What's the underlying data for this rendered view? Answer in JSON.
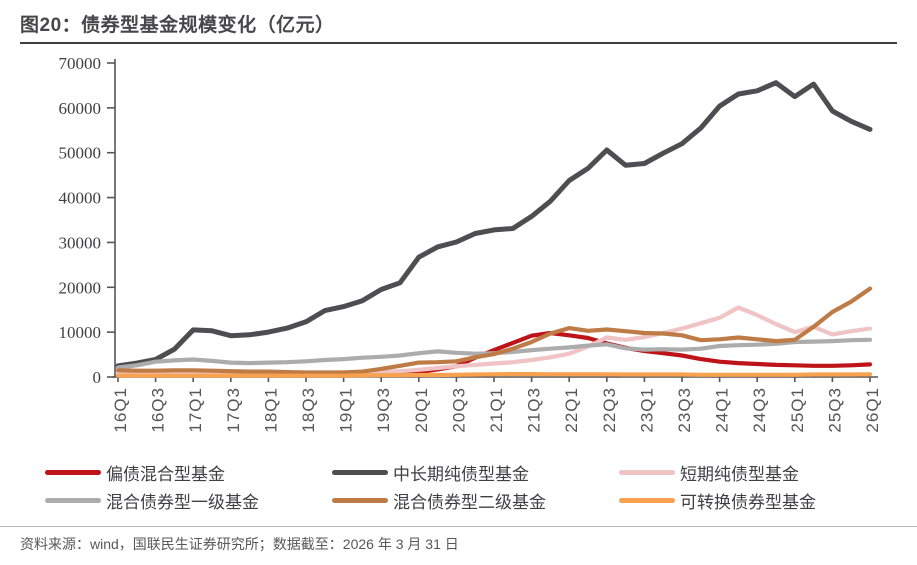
{
  "header": {
    "title": "图20：债券型基金规模变化（亿元）"
  },
  "footer": {
    "source": "资料来源：wind，国联民生证券研究所；数据截至：2026 年 3 月 31 日"
  },
  "chart_data": {
    "type": "line",
    "title": "图20：债券型基金规模变化（亿元）",
    "unit": "亿元",
    "xlabel": "",
    "ylabel": "",
    "ylim": [
      0,
      70000
    ],
    "yticks": [
      0,
      10000,
      20000,
      30000,
      40000,
      50000,
      60000,
      70000
    ],
    "grid": false,
    "legend_position": "bottom",
    "x_label_step": 2,
    "x": [
      "16Q1",
      "16Q2",
      "16Q3",
      "16Q4",
      "17Q1",
      "17Q2",
      "17Q3",
      "17Q4",
      "18Q1",
      "18Q2",
      "18Q3",
      "18Q4",
      "19Q1",
      "19Q2",
      "19Q3",
      "19Q4",
      "20Q1",
      "20Q2",
      "20Q3",
      "20Q4",
      "21Q1",
      "21Q2",
      "21Q3",
      "21Q4",
      "22Q1",
      "22Q2",
      "22Q3",
      "22Q4",
      "23Q1",
      "23Q2",
      "23Q3",
      "23Q4",
      "24Q1",
      "24Q2",
      "24Q3",
      "24Q4",
      "25Q1",
      "25Q2",
      "25Q3",
      "25Q4",
      "26Q1"
    ],
    "series": [
      {
        "name": "偏债混合型基金",
        "color": "#be1318",
        "values": [
          500,
          500,
          550,
          600,
          650,
          700,
          750,
          750,
          750,
          750,
          700,
          650,
          600,
          600,
          650,
          800,
          1100,
          1700,
          2400,
          4300,
          6000,
          7600,
          9200,
          9800,
          9300,
          8700,
          7500,
          6500,
          5800,
          5300,
          4800,
          4000,
          3400,
          3100,
          2900,
          2700,
          2600,
          2500,
          2500,
          2600,
          2800
        ]
      },
      {
        "name": "中长期纯债型基金",
        "color": "#4d4d52",
        "values": [
          2500,
          3100,
          3900,
          6200,
          10500,
          10300,
          9200,
          9400,
          10000,
          10900,
          12300,
          14800,
          15700,
          17000,
          19500,
          21000,
          26700,
          29000,
          30100,
          32000,
          32800,
          33100,
          35800,
          39200,
          43800,
          46500,
          50600,
          47200,
          47600,
          49900,
          52000,
          55500,
          60400,
          63100,
          63800,
          65600,
          62500,
          65300,
          59300,
          57000,
          55200
        ]
      },
      {
        "name": "短期纯债型基金",
        "color": "#f0c3c5",
        "values": [
          700,
          700,
          750,
          800,
          800,
          800,
          800,
          800,
          850,
          900,
          900,
          950,
          1000,
          1000,
          1100,
          1300,
          1600,
          2000,
          2400,
          2700,
          3000,
          3300,
          3800,
          4400,
          5200,
          6800,
          8800,
          8300,
          8900,
          9800,
          10800,
          12000,
          13200,
          15500,
          13800,
          11800,
          10000,
          11200,
          9500,
          10200,
          10800
        ]
      },
      {
        "name": "混合债券型一级基金",
        "color": "#acacac",
        "values": [
          2100,
          2600,
          3400,
          3700,
          3900,
          3600,
          3200,
          3100,
          3200,
          3300,
          3500,
          3800,
          4000,
          4300,
          4500,
          4800,
          5300,
          5700,
          5400,
          5200,
          5300,
          5600,
          6000,
          6300,
          6600,
          7000,
          7300,
          6400,
          6100,
          6200,
          6100,
          6300,
          6900,
          7100,
          7200,
          7400,
          7800,
          7900,
          8000,
          8200,
          8300
        ]
      },
      {
        "name": "混合债券型二级基金",
        "color": "#bf7b45",
        "values": [
          1500,
          1400,
          1400,
          1500,
          1500,
          1400,
          1300,
          1200,
          1200,
          1100,
          1000,
          1000,
          1000,
          1200,
          1800,
          2500,
          3200,
          3300,
          3500,
          4400,
          5100,
          6300,
          7800,
          9700,
          10900,
          10300,
          10600,
          10200,
          9800,
          9700,
          9300,
          8200,
          8400,
          8800,
          8400,
          8000,
          8300,
          11200,
          14500,
          16800,
          19700
        ]
      },
      {
        "name": "可转换债券型基金",
        "color": "#f8a14e",
        "values": [
          300,
          300,
          300,
          300,
          300,
          300,
          300,
          300,
          300,
          300,
          300,
          300,
          300,
          350,
          400,
          400,
          450,
          450,
          500,
          550,
          600,
          650,
          650,
          600,
          600,
          600,
          600,
          550,
          550,
          550,
          550,
          500,
          500,
          500,
          500,
          500,
          500,
          550,
          550,
          550,
          600
        ]
      }
    ]
  }
}
